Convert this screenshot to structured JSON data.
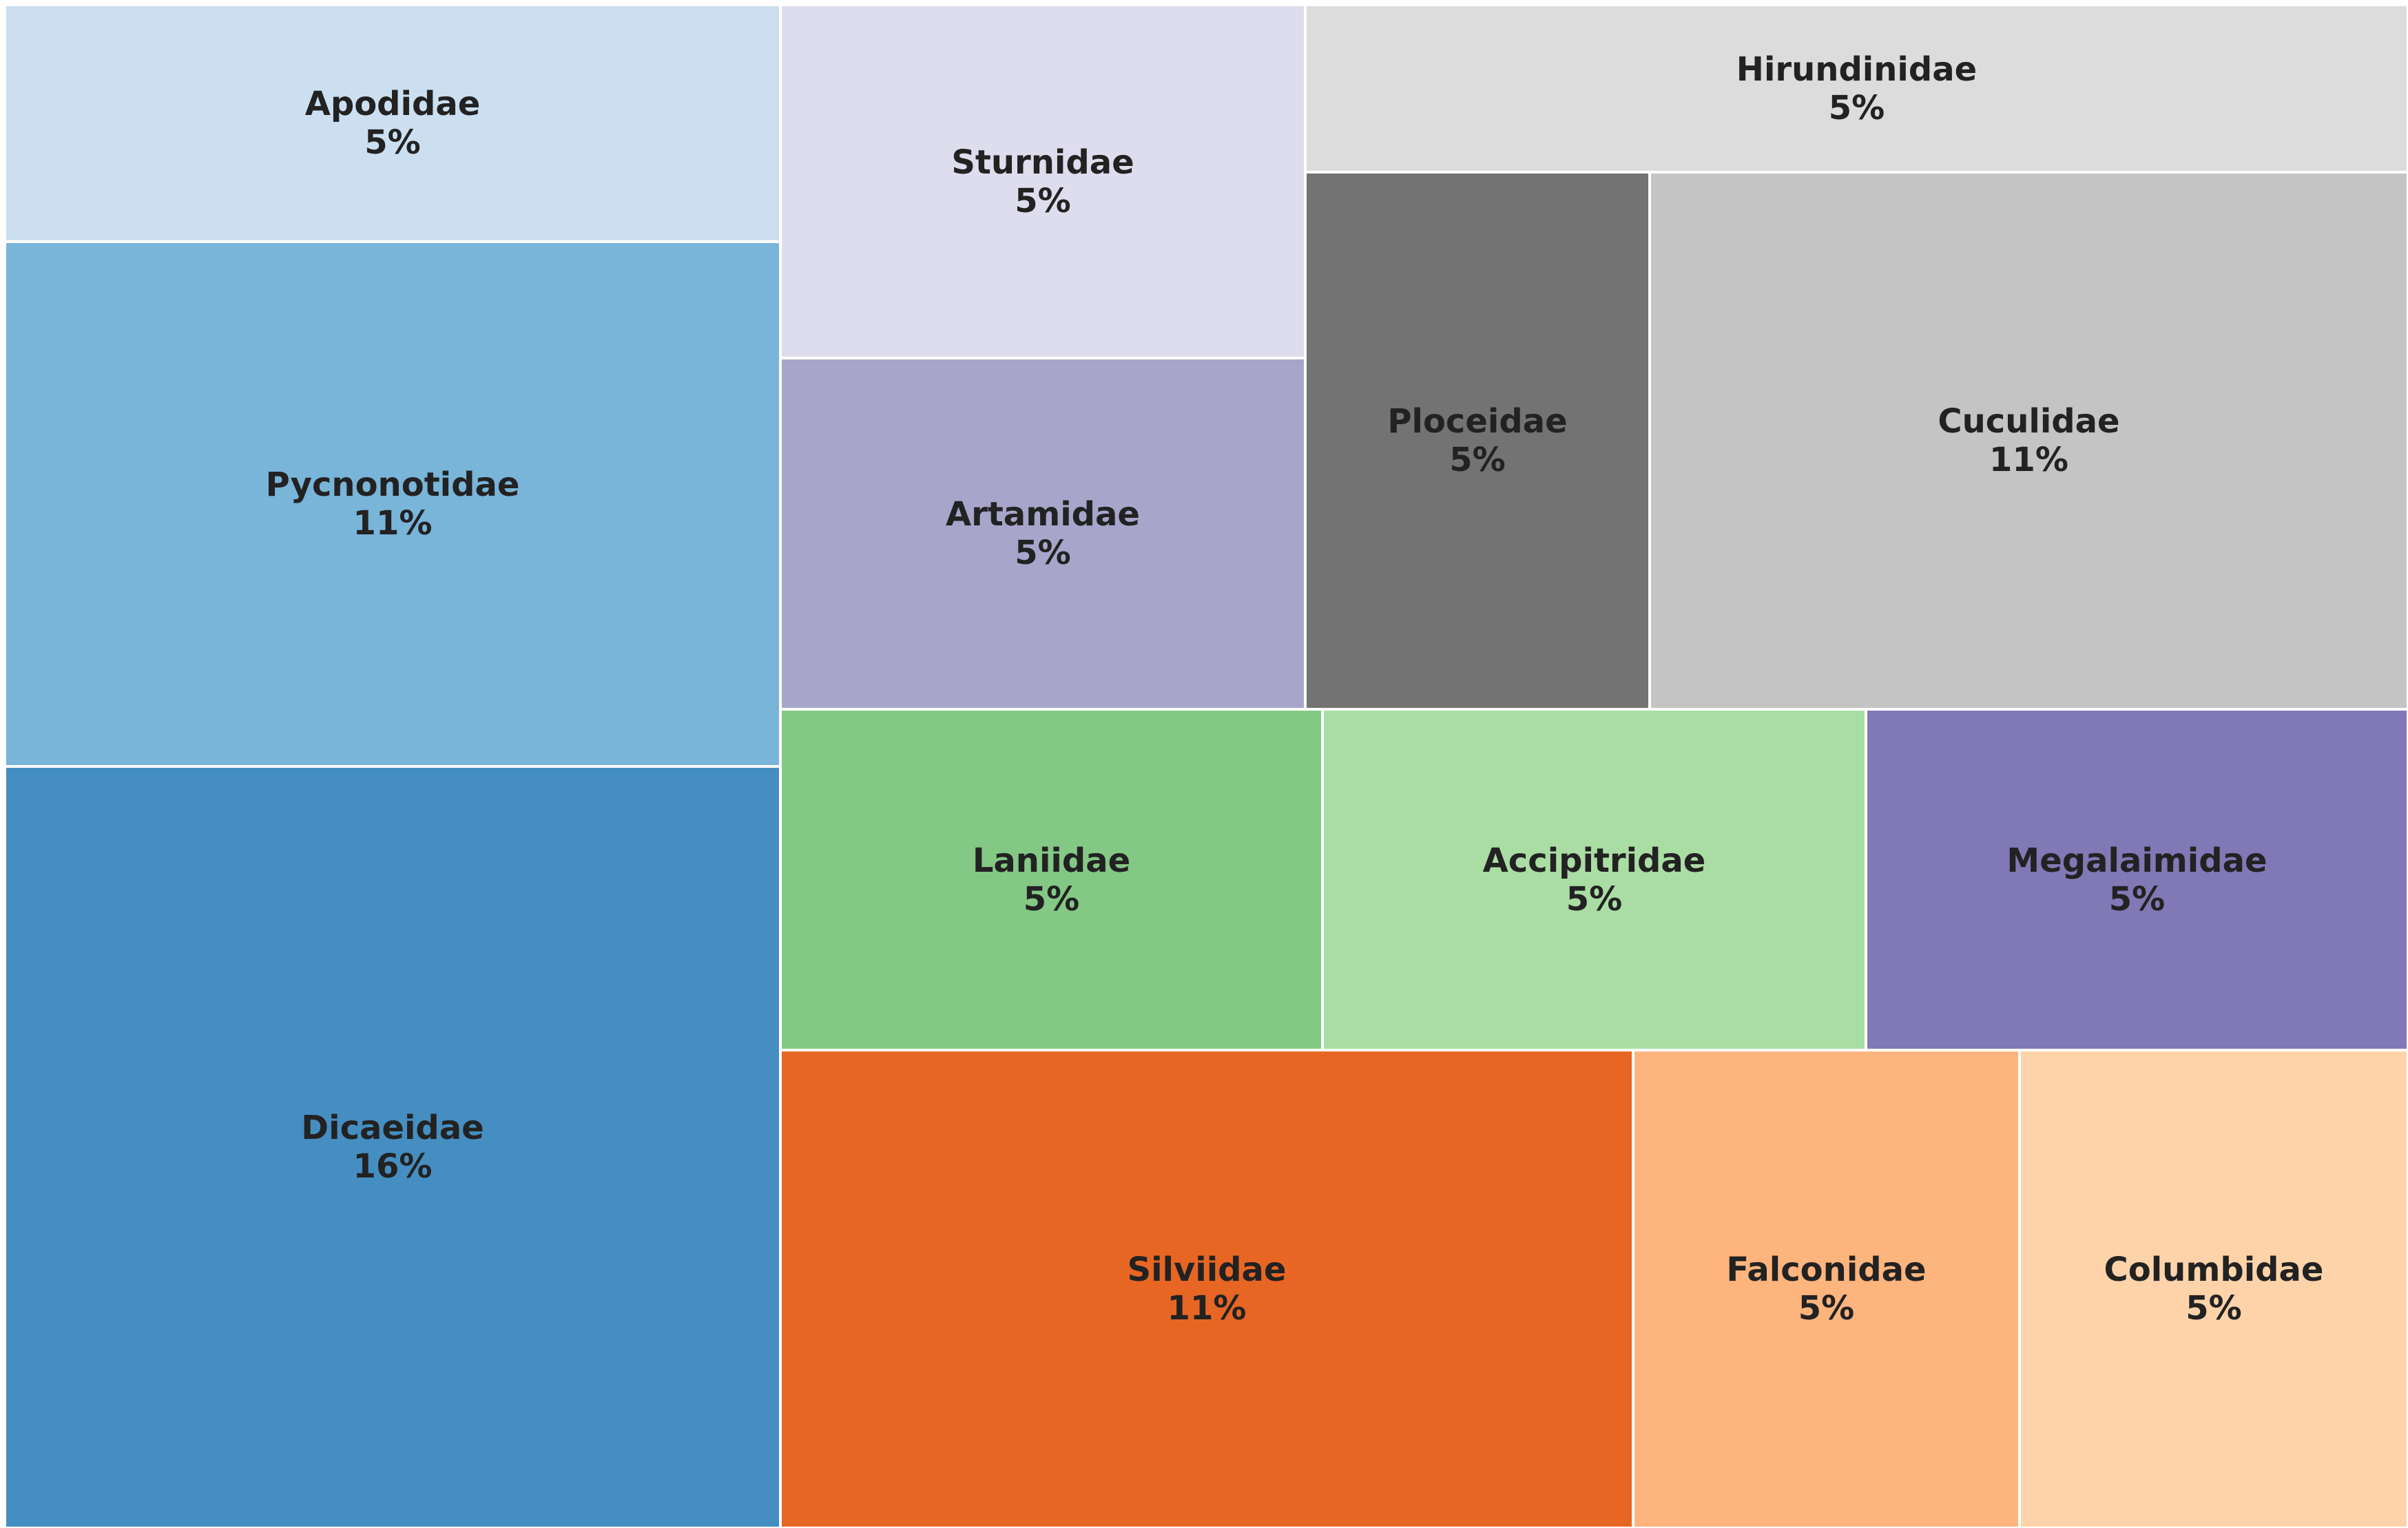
{
  "chart_data": {
    "type": "treemap",
    "title": "",
    "items": [
      {
        "label": "Apodidae",
        "percent": "5%",
        "value": 5,
        "color": "#cbdff0"
      },
      {
        "label": "Pycnonotidae",
        "percent": "11%",
        "value": 11,
        "color": "#79b4d9"
      },
      {
        "label": "Dicaeidae",
        "percent": "16%",
        "value": 16,
        "color": "#458ec1"
      },
      {
        "label": "Sturnidae",
        "percent": "5%",
        "value": 5,
        "color": "#dedded"
      },
      {
        "label": "Artamidae",
        "percent": "5%",
        "value": 5,
        "color": "#a8a5cb"
      },
      {
        "label": "Hirundinidae",
        "percent": "5%",
        "value": 5,
        "color": "#dcdcdc"
      },
      {
        "label": "Ploceidae",
        "percent": "5%",
        "value": 5,
        "color": "#737373"
      },
      {
        "label": "Cuculidae",
        "percent": "11%",
        "value": 11,
        "color": "#c4c4c4"
      },
      {
        "label": "Laniidae",
        "percent": "5%",
        "value": 5,
        "color": "#84c885"
      },
      {
        "label": "Accipitridae",
        "percent": "5%",
        "value": 5,
        "color": "#aadda4"
      },
      {
        "label": "Megalaimidae",
        "percent": "5%",
        "value": 5,
        "color": "#8178b6"
      },
      {
        "label": "Silviidae",
        "percent": "11%",
        "value": 11,
        "color": "#e86624"
      },
      {
        "label": "Falconidae",
        "percent": "5%",
        "value": 5,
        "color": "#feb47d"
      },
      {
        "label": "Columbidae",
        "percent": "5%",
        "value": 5,
        "color": "#fed3aa"
      }
    ]
  }
}
